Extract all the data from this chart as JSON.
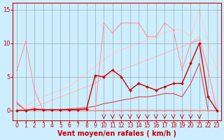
{
  "background_color": "#cceeff",
  "grid_color": "#999999",
  "xlabel": "Vent moyen/en rafales ( km/h )",
  "xlabel_color": "#cc0000",
  "xlabel_fontsize": 7,
  "yticks": [
    0,
    5,
    10,
    15
  ],
  "xticks": [
    0,
    1,
    2,
    3,
    4,
    5,
    6,
    7,
    8,
    9,
    10,
    11,
    12,
    13,
    14,
    15,
    16,
    17,
    18,
    19,
    20,
    21,
    22,
    23
  ],
  "ylim": [
    -1.5,
    16
  ],
  "xlim": [
    -0.5,
    23.5
  ],
  "tick_color": "#cc0000",
  "tick_fontsize": 5.5,
  "series": [
    {
      "x": [
        0,
        1,
        2,
        3,
        4,
        5,
        6,
        7,
        8,
        9,
        10,
        11,
        12,
        13,
        14,
        15,
        16,
        17,
        18,
        19,
        20,
        21,
        22,
        23
      ],
      "y": [
        6,
        10.3,
        3,
        0,
        0,
        0,
        0,
        0,
        0,
        0,
        13,
        11.5,
        13,
        13,
        13,
        11,
        11,
        13,
        12,
        6,
        10,
        10.5,
        6,
        0
      ],
      "color": "#ff9999",
      "lw": 0.8,
      "marker": "o",
      "ms": 1.5,
      "zorder": 3
    },
    {
      "x": [
        0,
        1,
        2,
        3,
        4,
        5,
        6,
        7,
        8,
        9,
        10,
        11,
        12,
        13,
        14,
        15,
        16,
        17,
        18,
        19,
        20,
        21,
        22,
        23
      ],
      "y": [
        0,
        0.5,
        1.5,
        2,
        2.5,
        3,
        3.5,
        4.5,
        5.5,
        6.5,
        7.5,
        8.5,
        9,
        9.5,
        10,
        10.5,
        11,
        11.5,
        12,
        12,
        11,
        15,
        10,
        6
      ],
      "color": "#ffcccc",
      "lw": 0.8,
      "marker": null,
      "ms": 0,
      "zorder": 1
    },
    {
      "x": [
        0,
        1,
        2,
        3,
        4,
        5,
        6,
        7,
        8,
        9,
        10,
        11,
        12,
        13,
        14,
        15,
        16,
        17,
        18,
        19,
        20,
        21,
        22,
        23
      ],
      "y": [
        0,
        0,
        0.5,
        1,
        1.5,
        2,
        2.5,
        3,
        3.5,
        4,
        5,
        5.5,
        6,
        6.5,
        7,
        7.5,
        8,
        8.5,
        9,
        9.5,
        10,
        11,
        6,
        0
      ],
      "color": "#ffbbbb",
      "lw": 0.8,
      "marker": null,
      "ms": 0,
      "zorder": 1
    },
    {
      "x": [
        0,
        1,
        2,
        3,
        4,
        5,
        6,
        7,
        8,
        9,
        10,
        11,
        12,
        13,
        14,
        15,
        16,
        17,
        18,
        19,
        20,
        21,
        22,
        23
      ],
      "y": [
        1,
        0,
        0.1,
        0.1,
        0.1,
        0.1,
        0.2,
        0.3,
        0.4,
        0.6,
        1,
        1.2,
        1.5,
        1.7,
        2,
        2,
        2.2,
        2.5,
        2.5,
        2,
        4,
        7,
        0,
        0
      ],
      "color": "#dd4444",
      "lw": 0.8,
      "marker": null,
      "ms": 0,
      "zorder": 2
    },
    {
      "x": [
        0,
        1,
        2,
        3,
        4,
        5,
        6,
        7,
        8,
        9,
        10,
        11,
        12,
        13,
        14,
        15,
        16,
        17,
        18,
        19,
        20,
        21,
        22,
        23
      ],
      "y": [
        1.2,
        0,
        0,
        0,
        0,
        0,
        0,
        0,
        0,
        0,
        0,
        0,
        0,
        0,
        0,
        0,
        0,
        0,
        0,
        0,
        0,
        0,
        0,
        0
      ],
      "color": "#ff8888",
      "lw": 0.8,
      "marker": "o",
      "ms": 1.5,
      "zorder": 2
    },
    {
      "x": [
        0,
        1,
        2,
        3,
        4,
        5,
        6,
        7,
        8,
        9,
        10,
        11,
        12,
        13,
        14,
        15,
        16,
        17,
        18,
        19,
        20,
        21,
        22,
        23
      ],
      "y": [
        0,
        0,
        0.2,
        0.1,
        0.1,
        0.1,
        0.1,
        0.1,
        0.2,
        5.2,
        5,
        6,
        5,
        3,
        4,
        3.5,
        3,
        3.5,
        4,
        4,
        7,
        10,
        2,
        0
      ],
      "color": "#cc0000",
      "lw": 1.0,
      "marker": "D",
      "ms": 2.0,
      "zorder": 4
    }
  ],
  "arrows_x": [
    10,
    11,
    12,
    13,
    14,
    15,
    16,
    17,
    18,
    19,
    20,
    21
  ],
  "arrow_color": "#cc0000"
}
